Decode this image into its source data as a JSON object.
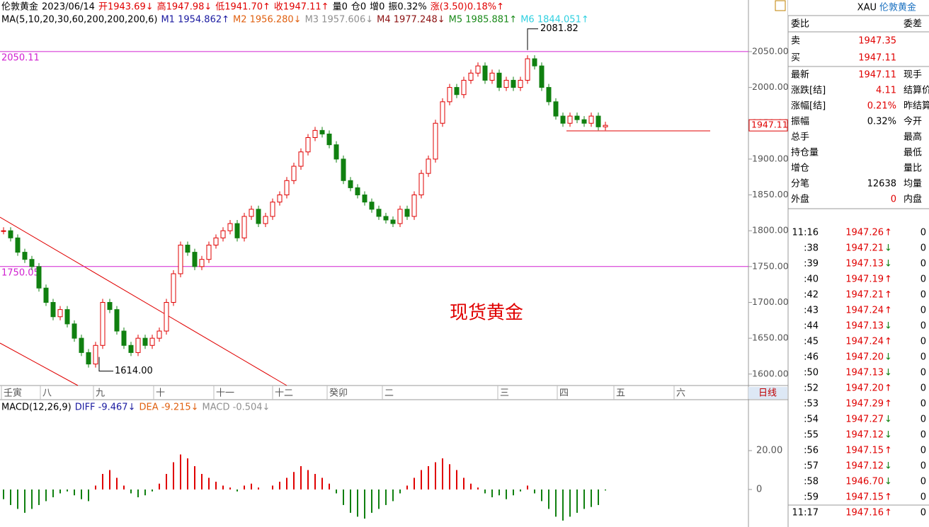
{
  "header": {
    "symbol": "伦敦黄金",
    "date": "2023/06/14",
    "items": [
      {
        "text": "开1943.69↓",
        "color": "#e00000"
      },
      {
        "text": "高1947.98↓",
        "color": "#e00000"
      },
      {
        "text": "低1941.70↑",
        "color": "#e00000"
      },
      {
        "text": "收1947.11↑",
        "color": "#e00000"
      },
      {
        "text": "量0",
        "color": "#000"
      },
      {
        "text": "仓0",
        "color": "#000"
      },
      {
        "text": "增0",
        "color": "#000"
      },
      {
        "text": "振0.32%",
        "color": "#000"
      },
      {
        "text": "涨(3.50)0.18%↑",
        "color": "#e00000"
      }
    ]
  },
  "ma_legend": {
    "label": "MA(5,10,20,30,60,200,200,200,6)",
    "items": [
      {
        "text": "M1 1954.862↑",
        "color": "#1a1aa0"
      },
      {
        "text": "M2 1956.280↓",
        "color": "#e06010"
      },
      {
        "text": "M3 1957.606↓",
        "color": "#909090"
      },
      {
        "text": "M4 1977.248↓",
        "color": "#8b1010"
      },
      {
        "text": "M5 1985.881↑",
        "color": "#1a8a1a"
      },
      {
        "text": "M6 1844.051↑",
        "color": "#30d0e0"
      }
    ]
  },
  "price_chart": {
    "type": "candlestick",
    "up_color": "#e00000",
    "down_color": "#108010",
    "closes": [
      1800,
      1790,
      1770,
      1760,
      1750,
      1720,
      1700,
      1680,
      1690,
      1670,
      1650,
      1630,
      1614,
      1640,
      1700,
      1690,
      1660,
      1640,
      1630,
      1650,
      1640,
      1650,
      1660,
      1700,
      1740,
      1780,
      1770,
      1750,
      1760,
      1780,
      1790,
      1800,
      1810,
      1790,
      1820,
      1830,
      1810,
      1820,
      1840,
      1850,
      1870,
      1890,
      1910,
      1930,
      1940,
      1935,
      1920,
      1900,
      1870,
      1860,
      1850,
      1840,
      1830,
      1820,
      1815,
      1810,
      1830,
      1820,
      1850,
      1880,
      1900,
      1950,
      1980,
      2000,
      1990,
      2010,
      2020,
      2030,
      2010,
      2020,
      2000,
      2010,
      2000,
      2010,
      2040,
      2030,
      2000,
      1980,
      1960,
      1950,
      1960,
      1955,
      1950,
      1960,
      1945,
      1947.11
    ],
    "ylim": [
      1584,
      2122
    ],
    "yticks": [
      {
        "value": 2050,
        "label": "2050.00"
      },
      {
        "value": 2000,
        "label": "2000.00"
      },
      {
        "value": 1950,
        "label": "1950.00"
      },
      {
        "value": 1900,
        "label": "1900.00"
      },
      {
        "value": 1850,
        "label": "1850.00"
      },
      {
        "value": 1800,
        "label": "1800.00"
      },
      {
        "value": 1750,
        "label": "1750.00"
      },
      {
        "value": 1700,
        "label": "1700.00"
      },
      {
        "value": 1650,
        "label": "1650.00"
      },
      {
        "value": 1600,
        "label": "1600.00"
      }
    ],
    "levels": [
      {
        "value": 2050.11,
        "label": "2050.11"
      },
      {
        "value": 1750.05,
        "label": "1750.05"
      }
    ],
    "level_color": "#d020d0",
    "high_mark": {
      "value": 2081.82,
      "label": "2081.82"
    },
    "low_mark": {
      "value": 1614,
      "label": "1614.00"
    },
    "last_price": {
      "value": 1947.11,
      "label": "1947.11"
    }
  },
  "time_axis": [
    "壬寅",
    "八",
    "九",
    "十",
    "十一",
    "十二",
    "癸卯",
    "二",
    "三",
    "四",
    "五",
    "六"
  ],
  "period_button": "日线",
  "watermark": "现货黄金",
  "macd": {
    "label": "MACD(12,26,9)",
    "items": [
      {
        "text": "DIFF -9.467↓",
        "color": "#1a1aa0"
      },
      {
        "text": "DEA -9.215↓",
        "color": "#e06010"
      },
      {
        "text": "MACD -0.504↓",
        "color": "#909090"
      }
    ],
    "histogram": [
      -5,
      -8,
      -10,
      -12,
      -10,
      -8,
      -6,
      -4,
      -2,
      -1,
      -3,
      -5,
      -6,
      2,
      8,
      10,
      6,
      2,
      -2,
      -4,
      -3,
      -1,
      3,
      8,
      14,
      18,
      16,
      12,
      8,
      6,
      4,
      2,
      1,
      -1,
      2,
      3,
      1,
      0,
      2,
      4,
      6,
      9,
      12,
      10,
      8,
      6,
      3,
      -2,
      -8,
      -12,
      -14,
      -15,
      -12,
      -10,
      -8,
      -6,
      -2,
      2,
      6,
      10,
      12,
      14,
      16,
      13,
      10,
      6,
      3,
      1,
      -2,
      -4,
      -3,
      -5,
      -3,
      -1,
      2,
      -2,
      -6,
      -10,
      -14,
      -16,
      -14,
      -12,
      -10,
      -9,
      -8,
      -0.504
    ],
    "ylim": [
      -19.3,
      46.2
    ],
    "yticks": [
      {
        "value": 20,
        "label": "20.00"
      },
      0
    ]
  },
  "quote": {
    "code": "XAU",
    "name": "伦敦黄金",
    "ratio_label": "委比",
    "diff_label": "委差",
    "sell": {
      "label": "卖",
      "value": "1947.35"
    },
    "buy": {
      "label": "买",
      "value": "1947.11"
    },
    "rows": [
      {
        "label": "最新",
        "value": "1947.11",
        "label2": "现手",
        "color": "#e00000"
      },
      {
        "label": "涨跌[结]",
        "value": "4.11",
        "label2": "结算价",
        "color": "#e00000"
      },
      {
        "label": "涨幅[结]",
        "value": "0.21%",
        "label2": "昨结算",
        "color": "#e00000"
      },
      {
        "label": "振幅",
        "value": "0.32%",
        "label2": "今开",
        "color": "#000"
      },
      {
        "label": "总手",
        "label2": "最高"
      },
      {
        "label": "持仓量",
        "label2": "最低"
      },
      {
        "label": "增仓",
        "label2": "量比"
      },
      {
        "label": "分笔",
        "value": "12638",
        "label2": "均量",
        "color": "#000"
      },
      {
        "label": "外盘",
        "value": "0",
        "label2": "内盘",
        "color": "#e00000"
      }
    ]
  },
  "trades": [
    {
      "time": "11:16",
      "price": "1947.26",
      "dir": "↑",
      "vol": "0"
    },
    {
      "time": ":38",
      "price": "1947.21",
      "dir": "↓",
      "vol": "0"
    },
    {
      "time": ":39",
      "price": "1947.13",
      "dir": "↓",
      "vol": "0"
    },
    {
      "time": ":40",
      "price": "1947.19",
      "dir": "↑",
      "vol": "0"
    },
    {
      "time": ":42",
      "price": "1947.21",
      "dir": "↑",
      "vol": "0"
    },
    {
      "time": ":43",
      "price": "1947.24",
      "dir": "↑",
      "vol": "0"
    },
    {
      "time": ":44",
      "price": "1947.13",
      "dir": "↓",
      "vol": "0"
    },
    {
      "time": ":45",
      "price": "1947.24",
      "dir": "↑",
      "vol": "0"
    },
    {
      "time": ":46",
      "price": "1947.20",
      "dir": "↓",
      "vol": "0"
    },
    {
      "time": ":50",
      "price": "1947.13",
      "dir": "↓",
      "vol": "0"
    },
    {
      "time": ":52",
      "price": "1947.20",
      "dir": "↑",
      "vol": "0"
    },
    {
      "time": ":53",
      "price": "1947.29",
      "dir": "↑",
      "vol": "0"
    },
    {
      "time": ":54",
      "price": "1947.27",
      "dir": "↓",
      "vol": "0"
    },
    {
      "time": ":55",
      "price": "1947.12",
      "dir": "↓",
      "vol": "0"
    },
    {
      "time": ":56",
      "price": "1947.15",
      "dir": "↑",
      "vol": "0"
    },
    {
      "time": ":57",
      "price": "1947.12",
      "dir": "↓",
      "vol": "0"
    },
    {
      "time": ":58",
      "price": "1946.70",
      "dir": "↓",
      "vol": "0"
    },
    {
      "time": ":59",
      "price": "1947.15",
      "dir": "↑",
      "vol": "0"
    },
    {
      "time": "11:17",
      "price": "1947.16",
      "dir": "↑",
      "vol": "0"
    }
  ]
}
